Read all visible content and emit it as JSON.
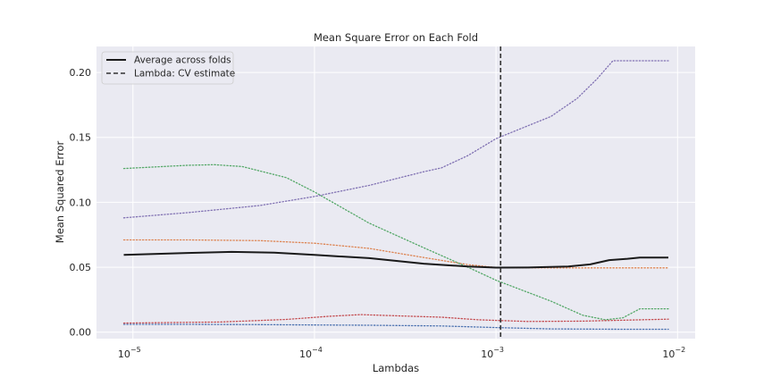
{
  "chart_data": {
    "type": "line",
    "title": "Mean Square Error on Each Fold",
    "xlabel": "Lambdas",
    "ylabel": "Mean Squared Error",
    "xscale": "log",
    "xlim": [
      6.3e-06,
      0.0125
    ],
    "ylim": [
      -0.005,
      0.22
    ],
    "grid": true,
    "legend_position": "top-left",
    "x_ticks": [
      {
        "value": 1e-05,
        "base": "10",
        "exp": "−5"
      },
      {
        "value": 0.0001,
        "base": "10",
        "exp": "−4"
      },
      {
        "value": 0.001,
        "base": "10",
        "exp": "−3"
      },
      {
        "value": 0.01,
        "base": "10",
        "exp": "−2"
      }
    ],
    "y_ticks": [
      {
        "value": 0.0,
        "label": "0.00"
      },
      {
        "value": 0.05,
        "label": "0.05"
      },
      {
        "value": 0.1,
        "label": "0.10"
      },
      {
        "value": 0.15,
        "label": "0.15"
      },
      {
        "value": 0.2,
        "label": "0.20"
      }
    ],
    "vline": {
      "x": 0.00106,
      "name": "Lambda: CV estimate",
      "color": "#333333",
      "style": "dashed"
    },
    "series": [
      {
        "color": "#4c72b0",
        "style": "dotted",
        "width": 1.3,
        "points": [
          [
            8.9e-06,
            0.006
          ],
          [
            2e-05,
            0.006
          ],
          [
            5e-05,
            0.0058
          ],
          [
            0.0001,
            0.0055
          ],
          [
            0.0002,
            0.0053
          ],
          [
            0.0005,
            0.0048
          ],
          [
            0.001,
            0.0035
          ],
          [
            0.002,
            0.0025
          ],
          [
            0.005,
            0.0022
          ],
          [
            0.0089,
            0.0022
          ]
        ]
      },
      {
        "color": "#dd8452",
        "style": "dotted",
        "width": 1.3,
        "points": [
          [
            8.9e-06,
            0.071
          ],
          [
            2e-05,
            0.071
          ],
          [
            5e-05,
            0.0705
          ],
          [
            0.0001,
            0.0685
          ],
          [
            0.0002,
            0.0645
          ],
          [
            0.0004,
            0.0575
          ],
          [
            0.0007,
            0.052
          ],
          [
            0.001,
            0.0498
          ],
          [
            0.002,
            0.0495
          ],
          [
            0.005,
            0.0495
          ],
          [
            0.0089,
            0.0495
          ]
        ]
      },
      {
        "color": "#55a868",
        "style": "dotted",
        "width": 1.3,
        "points": [
          [
            8.9e-06,
            0.126
          ],
          [
            2e-05,
            0.1285
          ],
          [
            2.8e-05,
            0.129
          ],
          [
            4e-05,
            0.1275
          ],
          [
            7e-05,
            0.119
          ],
          [
            0.0001,
            0.108
          ],
          [
            0.0002,
            0.084
          ],
          [
            0.0004,
            0.065
          ],
          [
            0.0007,
            0.05
          ],
          [
            0.001,
            0.04
          ],
          [
            0.002,
            0.024
          ],
          [
            0.003,
            0.013
          ],
          [
            0.004,
            0.0095
          ],
          [
            0.005,
            0.011
          ],
          [
            0.0062,
            0.018
          ],
          [
            0.0089,
            0.018
          ]
        ]
      },
      {
        "color": "#c44e52",
        "style": "dotted",
        "width": 1.3,
        "points": [
          [
            8.9e-06,
            0.007
          ],
          [
            3e-05,
            0.0078
          ],
          [
            7e-05,
            0.0098
          ],
          [
            0.00012,
            0.0122
          ],
          [
            0.00018,
            0.0135
          ],
          [
            0.0003,
            0.0125
          ],
          [
            0.0005,
            0.0115
          ],
          [
            0.0008,
            0.0095
          ],
          [
            0.0015,
            0.0082
          ],
          [
            0.003,
            0.0085
          ],
          [
            0.0089,
            0.01
          ]
        ]
      },
      {
        "color": "#8172b3",
        "style": "dotted",
        "width": 1.3,
        "points": [
          [
            8.9e-06,
            0.088
          ],
          [
            2e-05,
            0.092
          ],
          [
            5e-05,
            0.0975
          ],
          [
            0.0001,
            0.1045
          ],
          [
            0.0002,
            0.113
          ],
          [
            0.0004,
            0.1235
          ],
          [
            0.0005,
            0.1265
          ],
          [
            0.0007,
            0.136
          ],
          [
            0.001,
            0.149
          ],
          [
            0.0015,
            0.159
          ],
          [
            0.002,
            0.166
          ],
          [
            0.0028,
            0.18
          ],
          [
            0.0036,
            0.195
          ],
          [
            0.0044,
            0.209
          ],
          [
            0.0089,
            0.209
          ]
        ]
      },
      {
        "name": "Average across folds",
        "color": "#1a1a1a",
        "style": "solid",
        "width": 2,
        "points": [
          [
            8.9e-06,
            0.0595
          ],
          [
            2e-05,
            0.061
          ],
          [
            3.5e-05,
            0.0618
          ],
          [
            6e-05,
            0.0612
          ],
          [
            0.0001,
            0.0595
          ],
          [
            0.0002,
            0.057
          ],
          [
            0.0004,
            0.0527
          ],
          [
            0.0007,
            0.0505
          ],
          [
            0.001,
            0.0497
          ],
          [
            0.0015,
            0.0498
          ],
          [
            0.0025,
            0.0505
          ],
          [
            0.0033,
            0.0522
          ],
          [
            0.0042,
            0.0555
          ],
          [
            0.0053,
            0.0565
          ],
          [
            0.0062,
            0.0575
          ],
          [
            0.0089,
            0.0575
          ]
        ]
      }
    ]
  }
}
